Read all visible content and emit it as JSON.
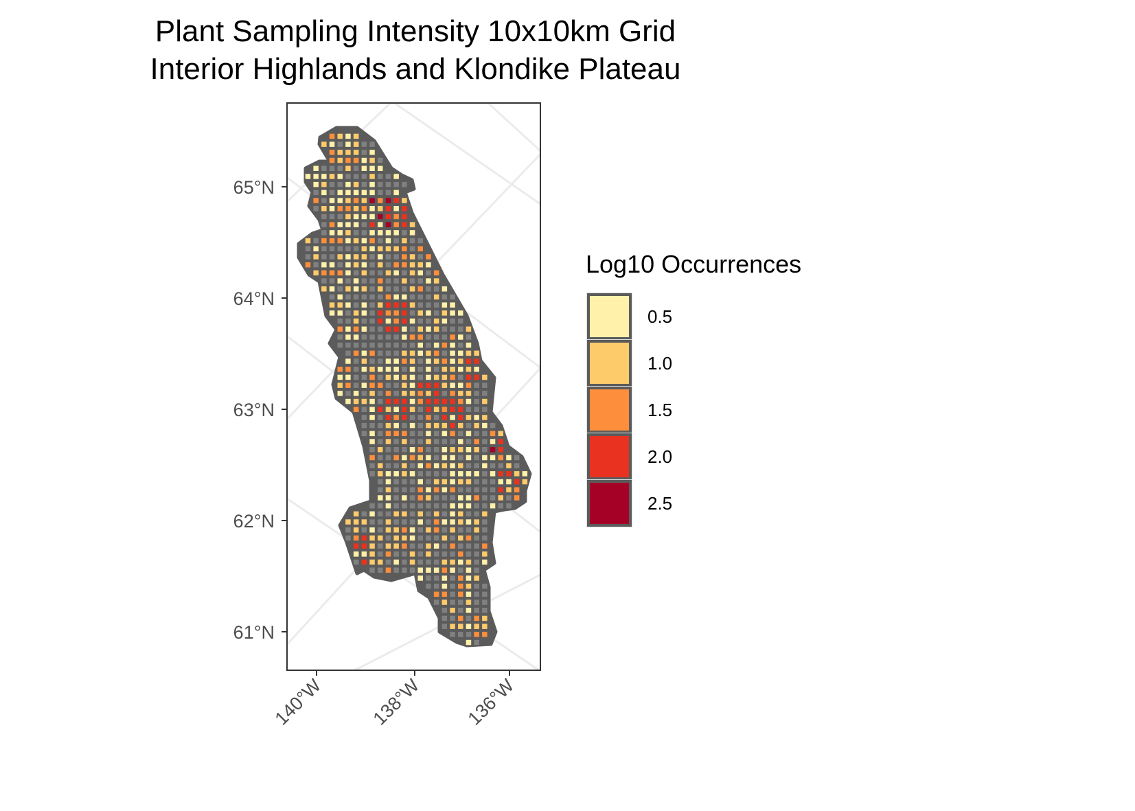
{
  "title_line1": "Plant Sampling Intensity 10x10km Grid",
  "title_line2": "Interior Highlands and Klondike Plateau",
  "colors": {
    "outline": "#5b5b5b",
    "no_data_cell": "#808080",
    "graticule": "#ebebeb",
    "panel_border": "#333333"
  },
  "chart_data": {
    "type": "heatmap",
    "subtype": "choropleth grid map",
    "title": "Plant Sampling Intensity 10x10km Grid / Interior Highlands and Klondike Plateau",
    "grid_resolution": "10x10km",
    "y_ticks": [
      {
        "value": 65,
        "label": "65°N"
      },
      {
        "value": 64,
        "label": "64°N"
      },
      {
        "value": 63,
        "label": "63°N"
      },
      {
        "value": 62,
        "label": "62°N"
      },
      {
        "value": 61,
        "label": "61°N"
      }
    ],
    "x_ticks": [
      {
        "value": -140,
        "label": "140°W"
      },
      {
        "value": -138,
        "label": "138°W"
      },
      {
        "value": -136,
        "label": "136°W"
      }
    ],
    "legend": {
      "title": "Log10 Occurrences",
      "placement": "right",
      "items": [
        {
          "value": 0.5,
          "label": "0.5",
          "color": "#FFF0AA"
        },
        {
          "value": 1.0,
          "label": "1.0",
          "color": "#FECB6B"
        },
        {
          "value": 1.5,
          "label": "1.5",
          "color": "#FD8E3C"
        },
        {
          "value": 2.0,
          "label": "2.0",
          "color": "#E9321F"
        },
        {
          "value": 2.5,
          "label": "2.5",
          "color": "#A50026"
        }
      ]
    },
    "hotspots": [
      {
        "lon": -139.2,
        "lat": 64.89,
        "value": 2.5
      },
      {
        "lon": -138.7,
        "lat": 64.77,
        "value": 2.5
      },
      {
        "lon": -138.2,
        "lat": 64.77,
        "value": 2.0
      },
      {
        "lon": -138.4,
        "lat": 63.84,
        "value": 2.0
      },
      {
        "lon": -137.7,
        "lat": 63.13,
        "value": 2.0
      },
      {
        "lon": -138.4,
        "lat": 63.0,
        "value": 2.0
      },
      {
        "lon": -137.2,
        "lat": 62.98,
        "value": 2.0
      },
      {
        "lon": -136.75,
        "lat": 63.4,
        "value": 2.0
      },
      {
        "lon": -136.2,
        "lat": 62.73,
        "value": 2.5
      },
      {
        "lon": -136.05,
        "lat": 62.36,
        "value": 2.0
      },
      {
        "lon": -139.0,
        "lat": 61.74,
        "value": 2.0
      }
    ]
  }
}
